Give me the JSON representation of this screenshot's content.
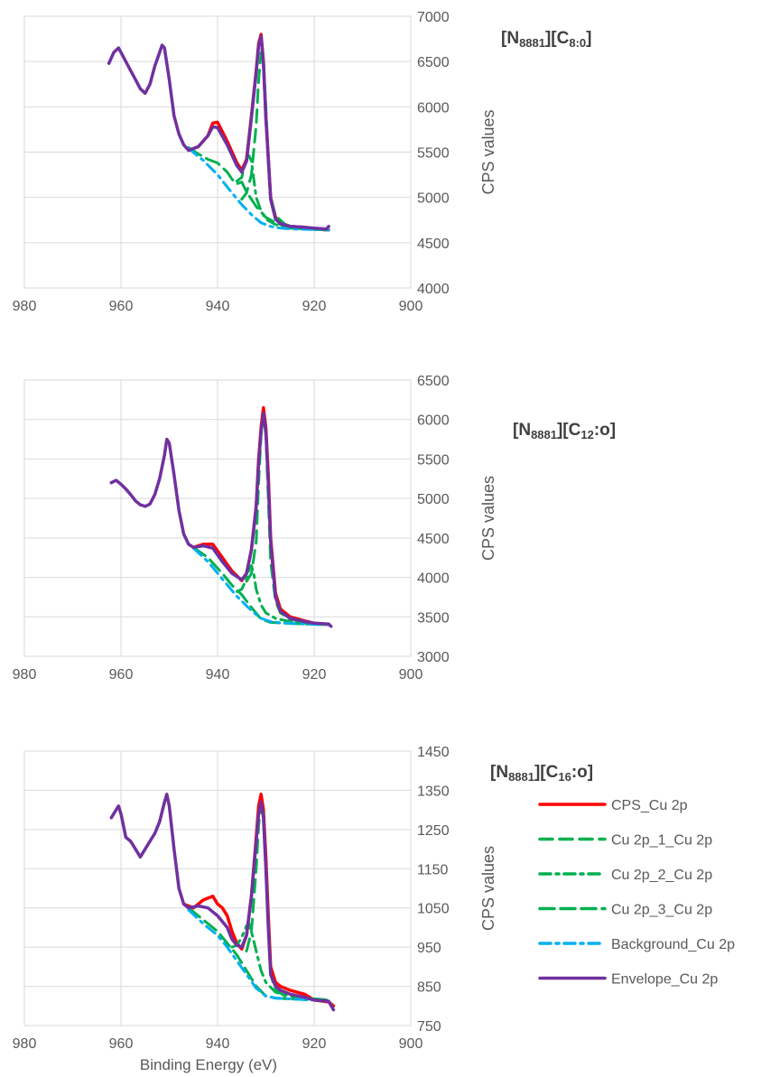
{
  "chart_data": [
    {
      "type": "line",
      "title_main": "[N",
      "title_sub1": "8881",
      "title_mid": "][C",
      "title_sub2": "8:0",
      "title_end": "]",
      "ylabel": "CPS values",
      "xlabel": "",
      "xlim": [
        980,
        900
      ],
      "ylim": [
        4000,
        7000
      ],
      "xticks": [
        980,
        960,
        940,
        920,
        900
      ],
      "yticks": [
        4000,
        4500,
        5000,
        5500,
        6000,
        6500,
        7000
      ],
      "grid": true,
      "series": [
        {
          "name": "CPS_Cu 2p",
          "x": [
            946,
            944,
            942,
            941,
            940,
            938,
            936,
            935,
            934,
            933,
            932,
            931.5,
            931,
            930.5,
            930,
            929,
            928,
            927,
            925,
            922,
            920,
            917
          ],
          "y": [
            5520,
            5560,
            5680,
            5820,
            5830,
            5620,
            5380,
            5300,
            5420,
            5900,
            6400,
            6700,
            6800,
            6500,
            5900,
            5000,
            4780,
            4720,
            4680,
            4670,
            4650,
            4640
          ]
        },
        {
          "name": "Cu 2p_1_Cu 2p",
          "x": [
            935,
            934,
            933,
            932,
            931.5,
            931,
            930.5,
            930,
            929.5,
            929,
            928,
            926,
            922,
            917
          ],
          "y": [
            4980,
            5050,
            5250,
            5800,
            6300,
            6600,
            6500,
            6000,
            5400,
            5000,
            4800,
            4700,
            4650,
            4640
          ]
        },
        {
          "name": "Cu 2p_2_Cu 2p",
          "x": [
            936,
            935,
            934.5,
            934,
            933.5,
            933,
            932.5,
            932,
            931,
            930,
            928,
            925,
            917
          ],
          "y": [
            5180,
            5220,
            5330,
            5430,
            5460,
            5400,
            5200,
            5000,
            4850,
            4760,
            4700,
            4660,
            4640
          ]
        },
        {
          "name": "Cu 2p_3_Cu 2p",
          "x": [
            946,
            944,
            942,
            940,
            938,
            937,
            936,
            935,
            934,
            932,
            930,
            928,
            925,
            920,
            917
          ],
          "y": [
            5550,
            5480,
            5420,
            5380,
            5280,
            5200,
            5150,
            5170,
            5060,
            4900,
            4780,
            4720,
            4670,
            4650,
            4640
          ]
        },
        {
          "name": "Background_Cu 2p",
          "x": [
            946,
            943,
            940,
            937,
            935,
            933,
            931,
            929,
            927,
            924,
            920,
            917
          ],
          "y": [
            5540,
            5410,
            5250,
            5050,
            4920,
            4810,
            4720,
            4680,
            4660,
            4650,
            4645,
            4640
          ]
        },
        {
          "name": "Envelope_Cu 2p",
          "x": [
            962.5,
            961.5,
            960.5,
            960,
            959,
            958,
            957,
            956,
            955,
            954,
            953,
            952,
            951.5,
            951,
            950,
            949,
            948,
            947,
            946,
            944,
            942,
            941,
            940,
            938,
            936,
            935,
            934,
            933,
            932,
            931.5,
            931,
            930.5,
            930,
            929,
            928,
            927,
            925,
            922,
            920,
            917.5,
            917
          ],
          "y": [
            6480,
            6600,
            6650,
            6600,
            6500,
            6400,
            6300,
            6200,
            6150,
            6250,
            6450,
            6600,
            6680,
            6650,
            6300,
            5900,
            5700,
            5580,
            5520,
            5560,
            5680,
            5780,
            5770,
            5580,
            5350,
            5280,
            5400,
            5880,
            6380,
            6680,
            6780,
            6480,
            5880,
            4980,
            4760,
            4710,
            4680,
            4670,
            4660,
            4650,
            4680
          ]
        }
      ]
    },
    {
      "type": "line",
      "title_main": "[N",
      "title_sub1": "8881",
      "title_mid": "][C",
      "title_sub2": "12",
      "title_end": ":o]",
      "ylabel": "CPS values",
      "xlabel": "",
      "xlim": [
        980,
        900
      ],
      "ylim": [
        3000,
        6500
      ],
      "xticks": [
        980,
        960,
        940,
        920,
        900
      ],
      "yticks": [
        3000,
        3500,
        4000,
        4500,
        5000,
        5500,
        6000,
        6500
      ],
      "grid": true,
      "series": [
        {
          "name": "CPS_Cu 2p",
          "x": [
            945,
            943,
            941,
            939,
            937,
            935,
            934,
            933,
            932,
            931.5,
            931,
            930.5,
            930,
            929.5,
            929,
            928,
            927,
            925,
            922,
            920,
            917
          ],
          "y": [
            4380,
            4420,
            4420,
            4250,
            4080,
            3960,
            4050,
            4350,
            4900,
            5500,
            5900,
            6150,
            5900,
            5300,
            4500,
            3800,
            3600,
            3500,
            3450,
            3420,
            3400
          ]
        },
        {
          "name": "Cu 2p_1_Cu 2p",
          "x": [
            934,
            933,
            932,
            931.5,
            931,
            930.5,
            930,
            929.5,
            929,
            928,
            927,
            925,
            922,
            917
          ],
          "y": [
            3950,
            4050,
            4450,
            5200,
            5800,
            6050,
            5800,
            5000,
            4200,
            3700,
            3550,
            3470,
            3430,
            3400
          ]
        },
        {
          "name": "Cu 2p_2_Cu 2p",
          "x": [
            936,
            935,
            934,
            933.5,
            933,
            932.5,
            932,
            931,
            930,
            928,
            925,
            920,
            917
          ],
          "y": [
            3820,
            3850,
            3980,
            4100,
            4150,
            4050,
            3850,
            3650,
            3550,
            3480,
            3440,
            3410,
            3400
          ]
        },
        {
          "name": "Cu 2p_3_Cu 2p",
          "x": [
            945,
            942,
            939,
            937,
            935,
            933,
            931,
            929,
            926,
            922,
            917
          ],
          "y": [
            4380,
            4250,
            4050,
            3900,
            3780,
            3620,
            3470,
            3430,
            3420,
            3410,
            3400
          ]
        },
        {
          "name": "Background_Cu 2p",
          "x": [
            945,
            942,
            939,
            936,
            933,
            931,
            929,
            926,
            922,
            917
          ],
          "y": [
            4370,
            4200,
            3980,
            3760,
            3580,
            3480,
            3440,
            3420,
            3410,
            3400
          ]
        },
        {
          "name": "Envelope_Cu 2p",
          "x": [
            962,
            961,
            960,
            959,
            958,
            957,
            956,
            955,
            954,
            953,
            952,
            951,
            950.5,
            950,
            949,
            948,
            947,
            946,
            945,
            943,
            941,
            939,
            937,
            935,
            934,
            933,
            932,
            931.5,
            931,
            930.5,
            930,
            929.5,
            929,
            928,
            927,
            925,
            922,
            920,
            917,
            916.5
          ],
          "y": [
            5200,
            5230,
            5180,
            5120,
            5050,
            4970,
            4920,
            4900,
            4930,
            5050,
            5250,
            5550,
            5750,
            5700,
            5300,
            4850,
            4550,
            4420,
            4380,
            4400,
            4370,
            4200,
            4050,
            3970,
            4050,
            4350,
            4900,
            5450,
            5850,
            6080,
            5850,
            5200,
            4450,
            3750,
            3570,
            3480,
            3440,
            3420,
            3410,
            3380
          ]
        }
      ]
    },
    {
      "type": "line",
      "title_main": "[N",
      "title_sub1": "8881",
      "title_mid": "][C",
      "title_sub2": "16",
      "title_end": ":o]",
      "ylabel": "CPS values",
      "xlabel": "Binding Energy (eV)",
      "xlim": [
        980,
        900
      ],
      "ylim": [
        750,
        1450
      ],
      "xticks": [
        980,
        960,
        940,
        920,
        900
      ],
      "yticks": [
        750,
        850,
        950,
        1050,
        1150,
        1250,
        1350,
        1450
      ],
      "grid": true,
      "series": [
        {
          "name": "CPS_Cu 2p",
          "x": [
            947,
            945,
            943,
            941,
            940,
            939,
            938,
            937,
            936,
            935,
            934,
            933,
            932,
            931.5,
            931,
            930.5,
            930,
            929.5,
            929,
            928,
            927,
            925,
            922,
            920,
            917,
            916
          ],
          "y": [
            1060,
            1050,
            1070,
            1080,
            1060,
            1050,
            1030,
            990,
            960,
            945,
            980,
            1080,
            1230,
            1310,
            1340,
            1300,
            1180,
            1030,
            900,
            860,
            850,
            840,
            830,
            815,
            810,
            800
          ]
        },
        {
          "name": "Cu 2p_1_Cu 2p",
          "x": [
            934,
            933,
            932,
            931.5,
            931,
            930.5,
            930,
            929.5,
            929,
            928,
            926,
            922,
            917
          ],
          "y": [
            940,
            990,
            1150,
            1260,
            1320,
            1290,
            1150,
            1000,
            880,
            840,
            825,
            820,
            815
          ]
        },
        {
          "name": "Cu 2p_2_Cu 2p",
          "x": [
            937,
            936,
            935,
            934,
            933.5,
            933,
            932,
            931,
            930,
            928,
            925,
            920,
            917
          ],
          "y": [
            950,
            955,
            975,
            1005,
            1010,
            990,
            940,
            890,
            860,
            835,
            825,
            818,
            815
          ]
        },
        {
          "name": "Cu 2p_3_Cu 2p",
          "x": [
            946,
            944,
            942,
            940,
            938,
            936,
            934,
            932,
            930,
            928,
            925,
            920,
            917
          ],
          "y": [
            1050,
            1030,
            1010,
            990,
            960,
            930,
            890,
            850,
            825,
            820,
            818,
            815,
            812
          ]
        },
        {
          "name": "Background_Cu 2p",
          "x": [
            946,
            943,
            940,
            938,
            936,
            934,
            932,
            930,
            928,
            925,
            920,
            917
          ],
          "y": [
            1045,
            1010,
            980,
            950,
            915,
            880,
            845,
            825,
            820,
            818,
            815,
            812
          ]
        },
        {
          "name": "Envelope_Cu 2p",
          "x": [
            962,
            961,
            960.5,
            960,
            959,
            958,
            957,
            956,
            955,
            954,
            953,
            952,
            951,
            950.5,
            950,
            949,
            948,
            947,
            946,
            944,
            942,
            940,
            938,
            937,
            936,
            935,
            934,
            933,
            932,
            931.5,
            931,
            930.5,
            930,
            929.5,
            929,
            928,
            927,
            925,
            922,
            920,
            917,
            916
          ],
          "y": [
            1280,
            1300,
            1310,
            1290,
            1230,
            1220,
            1200,
            1180,
            1200,
            1220,
            1240,
            1270,
            1320,
            1340,
            1310,
            1200,
            1100,
            1060,
            1050,
            1055,
            1050,
            1030,
            1000,
            970,
            955,
            950,
            980,
            1080,
            1220,
            1290,
            1320,
            1280,
            1150,
            1000,
            880,
            850,
            840,
            830,
            822,
            815,
            812,
            790
          ]
        }
      ]
    }
  ],
  "legend": {
    "items": [
      {
        "label": "CPS_Cu 2p",
        "color": "#ff0000",
        "style": "solid"
      },
      {
        "label": "Cu 2p_1_Cu 2p",
        "color": "#00b050",
        "style": "dash"
      },
      {
        "label": "Cu 2p_2_Cu 2p",
        "color": "#00b050",
        "style": "dashdot"
      },
      {
        "label": "Cu 2p_3_Cu 2p",
        "color": "#00b050",
        "style": "longdash"
      },
      {
        "label": "Background_Cu 2p",
        "color": "#00b0f0",
        "style": "dashdot"
      },
      {
        "label": "Envelope_Cu 2p",
        "color": "#7030a0",
        "style": "solid"
      }
    ]
  },
  "colors": {
    "cps": "#ff0000",
    "component": "#00b050",
    "background": "#00b0f0",
    "envelope": "#7030a0",
    "grid": "#d9d9d9",
    "text": "#595959"
  }
}
